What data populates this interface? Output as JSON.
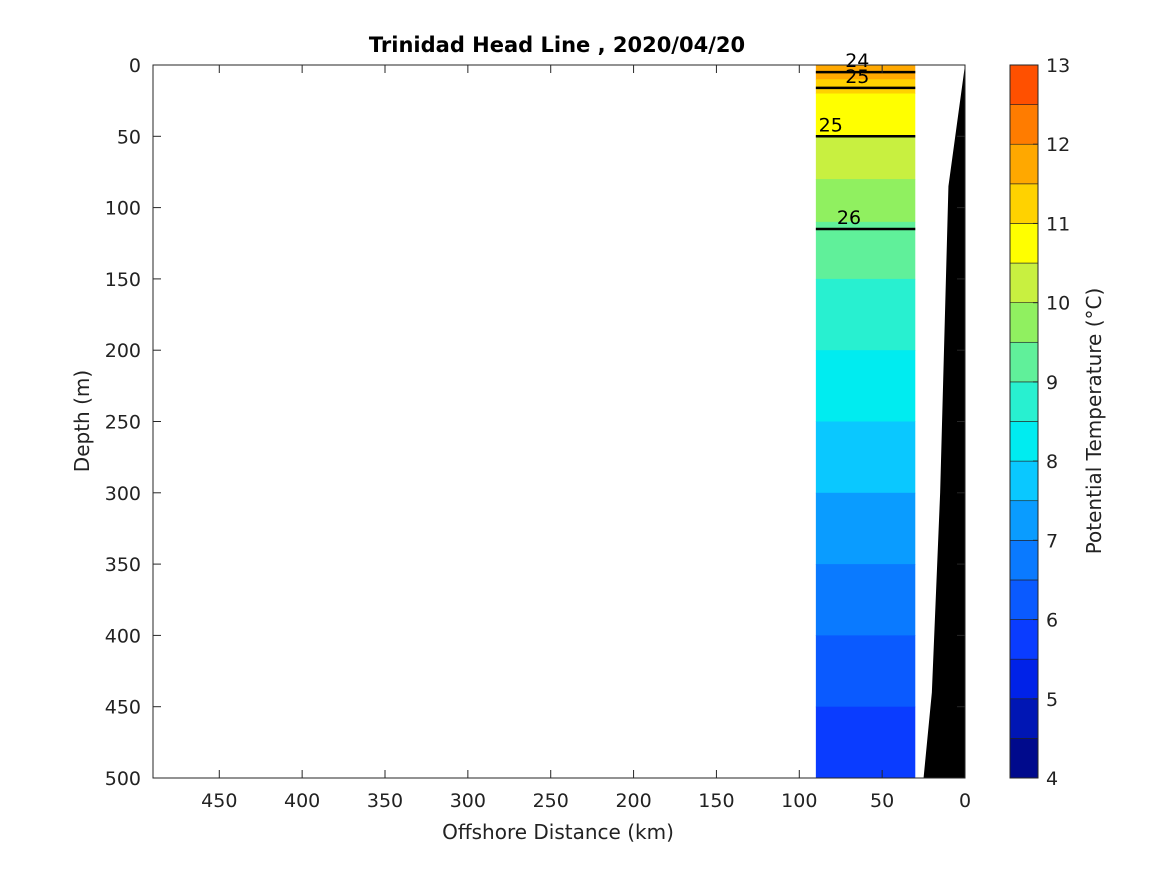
{
  "chart_data": {
    "type": "heatmap",
    "title": "Trinidad Head Line , 2020/04/20",
    "xlabel": "Offshore Distance (km)",
    "ylabel": "Depth (m)",
    "colorbar_label": "Potential Temperature (°C)",
    "xlim": [
      490,
      0
    ],
    "ylim": [
      0,
      500
    ],
    "x_reversed": true,
    "y_reversed": true,
    "x_ticks": [
      450,
      400,
      350,
      300,
      250,
      200,
      150,
      100,
      50,
      0
    ],
    "y_ticks": [
      0,
      50,
      100,
      150,
      200,
      250,
      300,
      350,
      400,
      450,
      500
    ],
    "colorbar": {
      "range": [
        4,
        13
      ],
      "step": 0.5,
      "ticks": [
        4,
        5,
        6,
        7,
        8,
        9,
        10,
        11,
        12,
        13
      ],
      "colors": [
        "#000a8c",
        "#0016b4",
        "#0022e8",
        "#0a3cff",
        "#0a5aff",
        "#0a7aff",
        "#0a9cff",
        "#0ac8ff",
        "#00ecf0",
        "#28f0d0",
        "#60f09a",
        "#90f060",
        "#c8f040",
        "#ffff00",
        "#ffd200",
        "#ffa800",
        "#ff7c00",
        "#ff5000",
        "#f01e00",
        "#c80000"
      ]
    },
    "section": {
      "x_range_km": [
        90,
        30
      ],
      "depth_range_m": [
        0,
        500
      ],
      "temperature_profiles": [
        {
          "depth": 0,
          "temp": 11.5
        },
        {
          "depth": 10,
          "temp": 11.0
        },
        {
          "depth": 20,
          "temp": 10.5
        },
        {
          "depth": 50,
          "temp": 10.0
        },
        {
          "depth": 80,
          "temp": 9.5
        },
        {
          "depth": 110,
          "temp": 9.0
        },
        {
          "depth": 150,
          "temp": 8.5
        },
        {
          "depth": 200,
          "temp": 8.0
        },
        {
          "depth": 250,
          "temp": 7.5
        },
        {
          "depth": 300,
          "temp": 7.0
        },
        {
          "depth": 350,
          "temp": 6.5
        },
        {
          "depth": 400,
          "temp": 6.0
        },
        {
          "depth": 450,
          "temp": 5.5
        },
        {
          "depth": 500,
          "temp": 5.0
        }
      ]
    },
    "density_contours": [
      {
        "label": "24",
        "depth_m": 5,
        "x_km": 65
      },
      {
        "label": "25",
        "depth_m": 16,
        "x_km": 65
      },
      {
        "label": "25",
        "depth_m": 50,
        "x_km": 81
      },
      {
        "label": "26",
        "depth_m": 115,
        "x_km": 70
      }
    ],
    "bathymetry": {
      "color": "#000000",
      "profile": [
        {
          "x": 0,
          "depth": 0
        },
        {
          "x": 10,
          "depth": 85
        },
        {
          "x": 15,
          "depth": 300
        },
        {
          "x": 20,
          "depth": 440
        },
        {
          "x": 25,
          "depth": 500
        }
      ]
    }
  }
}
